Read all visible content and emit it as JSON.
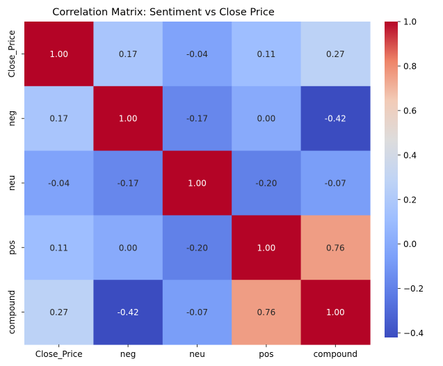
{
  "chart_data": {
    "type": "heatmap",
    "title": "Correlation Matrix: Sentiment vs Close Price",
    "x_labels": [
      "Close_Price",
      "neg",
      "neu",
      "pos",
      "compound"
    ],
    "y_labels": [
      "Close_Price",
      "neg",
      "neu",
      "pos",
      "compound"
    ],
    "values": [
      [
        1.0,
        0.17,
        -0.04,
        0.11,
        0.27
      ],
      [
        0.17,
        1.0,
        -0.17,
        -0.0,
        -0.42
      ],
      [
        -0.04,
        -0.17,
        1.0,
        -0.2,
        -0.07
      ],
      [
        0.11,
        -0.0,
        -0.2,
        1.0,
        0.76
      ],
      [
        0.27,
        -0.42,
        -0.07,
        0.76,
        1.0
      ]
    ],
    "value_format": "0.00",
    "colormap": "coolwarm",
    "colorbar": {
      "range": [
        -0.42,
        1.0
      ],
      "ticks": [
        1.0,
        0.8,
        0.6,
        0.4,
        0.2,
        0.0,
        -0.2,
        -0.4
      ],
      "tick_labels": [
        "1.0",
        "0.8",
        "0.6",
        "0.4",
        "0.2",
        "0.0",
        "−0.2",
        "−0.4"
      ]
    },
    "grid": false
  }
}
